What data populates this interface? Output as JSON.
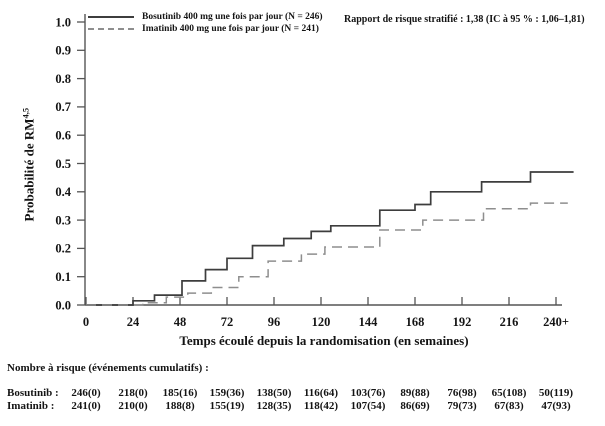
{
  "figure": {
    "y_label_main": "Probabilité de RM",
    "y_label_sup": "4,5"
  },
  "chart_data": {
    "type": "line",
    "subtype": "step-cumulative-incidence",
    "title": "",
    "xlabel": "Temps écoulé depuis la randomisation (en semaines)",
    "ylabel": "Probabilité de RM4,5",
    "xlim": [
      0,
      249
    ],
    "ylim": [
      0,
      1.0
    ],
    "grid": false,
    "legend_position": "top-left-inside",
    "annotation": "Rapport de risque stratifié : 1,38 (IC à 95 % : 1,06–1,81)",
    "x_ticks": [
      {
        "value": 0,
        "label": "0"
      },
      {
        "value": 24,
        "label": "24"
      },
      {
        "value": 48,
        "label": "48"
      },
      {
        "value": 72,
        "label": "72"
      },
      {
        "value": 96,
        "label": "96"
      },
      {
        "value": 120,
        "label": "120"
      },
      {
        "value": 144,
        "label": "144"
      },
      {
        "value": 168,
        "label": "168"
      },
      {
        "value": 192,
        "label": "192"
      },
      {
        "value": 216,
        "label": "216"
      },
      {
        "value": 240,
        "label": "240+"
      }
    ],
    "y_ticks": [
      {
        "value": 0.0,
        "label": "0.0"
      },
      {
        "value": 0.1,
        "label": "0.1"
      },
      {
        "value": 0.2,
        "label": "0.2"
      },
      {
        "value": 0.3,
        "label": "0.3"
      },
      {
        "value": 0.4,
        "label": "0.4"
      },
      {
        "value": 0.5,
        "label": "0.5"
      },
      {
        "value": 0.6,
        "label": "0.6"
      },
      {
        "value": 0.7,
        "label": "0.7"
      },
      {
        "value": 0.8,
        "label": "0.8"
      },
      {
        "value": 0.9,
        "label": "0.9"
      },
      {
        "value": 1.0,
        "label": "1.0"
      }
    ],
    "series": [
      {
        "name": "Bosutinib 400 mg une fois par jour (N = 246)",
        "style": "solid",
        "color": "#3d3d3d",
        "end_week": 249,
        "points": [
          [
            0,
            0
          ],
          [
            24,
            0.015
          ],
          [
            35,
            0.035
          ],
          [
            49,
            0.085
          ],
          [
            61,
            0.125
          ],
          [
            72,
            0.165
          ],
          [
            85,
            0.21
          ],
          [
            101,
            0.235
          ],
          [
            115,
            0.26
          ],
          [
            125,
            0.28
          ],
          [
            150,
            0.335
          ],
          [
            168,
            0.355
          ],
          [
            176,
            0.4
          ],
          [
            202,
            0.435
          ],
          [
            227,
            0.47
          ]
        ]
      },
      {
        "name": "Imatinib 400 mg une fois par jour (N = 241)",
        "style": "dashed",
        "color": "#8e8e8e",
        "end_week": 246,
        "points": [
          [
            0,
            0
          ],
          [
            29,
            0.008
          ],
          [
            41,
            0.028
          ],
          [
            52,
            0.042
          ],
          [
            64,
            0.062
          ],
          [
            78,
            0.1
          ],
          [
            93,
            0.155
          ],
          [
            110,
            0.18
          ],
          [
            122,
            0.205
          ],
          [
            150,
            0.265
          ],
          [
            172,
            0.3
          ],
          [
            203,
            0.34
          ],
          [
            227,
            0.36
          ]
        ]
      }
    ]
  },
  "risk_table": {
    "header": "Nombre à risque (événements cumulatifs) :",
    "rows": [
      {
        "label": "Bosutinib :",
        "values": [
          "246(0)",
          "218(0)",
          "185(16)",
          "159(36)",
          "138(50)",
          "116(64)",
          "103(76)",
          "89(88)",
          "76(98)",
          "65(108)",
          "50(119)"
        ]
      },
      {
        "label": "Imatinib :",
        "values": [
          "241(0)",
          "210(0)",
          "188(8)",
          "155(19)",
          "128(35)",
          "118(42)",
          "107(54)",
          "86(69)",
          "79(73)",
          "67(83)",
          "47(93)"
        ]
      }
    ]
  }
}
